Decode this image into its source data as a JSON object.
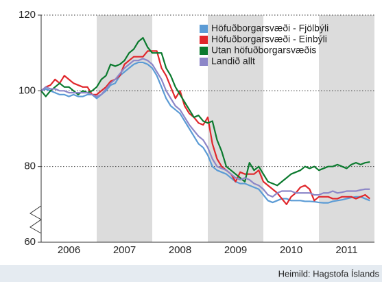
{
  "chart_data": {
    "type": "line",
    "source": "Heimild: Hagstofa Íslands",
    "xlim": [
      2006,
      2012
    ],
    "xticks": [
      {
        "value": 2006.5,
        "label": "2006"
      },
      {
        "value": 2007.5,
        "label": "2007"
      },
      {
        "value": 2008.5,
        "label": "2008"
      },
      {
        "value": 2009.5,
        "label": "2009"
      },
      {
        "value": 2010.5,
        "label": "2010"
      },
      {
        "value": 2011.5,
        "label": "2011"
      }
    ],
    "ylim": [
      60,
      120
    ],
    "yticks": [
      60,
      80,
      100,
      120
    ],
    "grid": true,
    "shaded_bands": [
      [
        2007,
        2008
      ],
      [
        2009,
        2010
      ],
      [
        2011,
        2012
      ]
    ],
    "legend": "top-right",
    "x": [
      2006.0,
      2006.083,
      2006.167,
      2006.25,
      2006.333,
      2006.417,
      2006.5,
      2006.583,
      2006.667,
      2006.75,
      2006.833,
      2006.917,
      2007.0,
      2007.083,
      2007.167,
      2007.25,
      2007.333,
      2007.417,
      2007.5,
      2007.583,
      2007.667,
      2007.75,
      2007.833,
      2007.917,
      2008.0,
      2008.083,
      2008.167,
      2008.25,
      2008.333,
      2008.417,
      2008.5,
      2008.583,
      2008.667,
      2008.75,
      2008.833,
      2008.917,
      2009.0,
      2009.083,
      2009.167,
      2009.25,
      2009.333,
      2009.417,
      2009.5,
      2009.583,
      2009.667,
      2009.75,
      2009.833,
      2009.917,
      2010.0,
      2010.083,
      2010.167,
      2010.25,
      2010.333,
      2010.417,
      2010.5,
      2010.583,
      2010.667,
      2010.75,
      2010.833,
      2010.917,
      2011.0,
      2011.083,
      2011.167,
      2011.25,
      2011.333,
      2011.417,
      2011.5,
      2011.583,
      2011.667,
      2011.75,
      2011.833,
      2011.917
    ],
    "series": [
      {
        "name": "Höfuðborgarsvæði - Fjölbýli",
        "color": "#5b9bd5",
        "values": [
          100,
          100.5,
          100,
          99.5,
          99,
          99,
          98.5,
          99,
          98.5,
          98.5,
          99,
          99,
          98,
          99,
          100,
          101.5,
          102,
          104,
          105,
          106,
          107,
          107.5,
          107.5,
          107,
          106,
          104,
          101,
          98,
          96,
          95,
          94,
          92,
          90,
          88,
          86,
          85,
          83,
          80,
          79,
          78.5,
          78,
          77,
          76,
          75.5,
          75.5,
          75,
          74.5,
          74,
          72.5,
          71,
          70.5,
          71,
          71.5,
          71.5,
          71,
          71,
          71,
          70.8,
          70.8,
          70.7,
          70.5,
          70.4,
          70.4,
          70.8,
          71,
          71.2,
          71.5,
          71.8,
          72,
          72,
          71.5,
          71
        ]
      },
      {
        "name": "Höfuðborgarsvæði - Einbýli",
        "color": "#e0262b",
        "values": [
          100,
          101,
          101.5,
          103,
          102,
          104,
          103,
          102,
          101.5,
          101,
          101,
          99,
          99,
          100,
          101,
          102.5,
          103,
          104,
          107,
          108,
          109,
          109,
          109,
          110.5,
          110.5,
          110.5,
          106,
          104,
          101,
          98,
          100,
          96,
          94,
          93,
          91.5,
          91,
          93,
          86,
          82,
          80,
          79,
          78,
          76,
          78.5,
          78,
          78,
          78,
          79,
          76,
          75,
          74,
          73,
          71.5,
          70,
          72,
          73,
          74.5,
          75,
          74,
          71,
          72,
          72,
          72,
          71.5,
          71.5,
          72,
          72,
          72,
          71.5,
          72,
          72.5,
          71.5
        ]
      },
      {
        "name": "Utan höfuðborgarsvæðis",
        "color": "#0b7a2e",
        "values": [
          100,
          98.5,
          100,
          101,
          102,
          101,
          101,
          100,
          99,
          100,
          99.5,
          100,
          101,
          103,
          104,
          107,
          106.5,
          107,
          108,
          110,
          111,
          113,
          114,
          111.5,
          110,
          110,
          110,
          106,
          104,
          101,
          99,
          97,
          95,
          93,
          93.5,
          92,
          91.5,
          92,
          87,
          84,
          80,
          79,
          78,
          77,
          76,
          81,
          79,
          80,
          78,
          76,
          75.5,
          75,
          76,
          77,
          78,
          78.5,
          79,
          80,
          79.5,
          80,
          79,
          79.5,
          80,
          80,
          80.5,
          80,
          79.5,
          80.5,
          81,
          80.5,
          81,
          81.2
        ]
      },
      {
        "name": "Landið allt",
        "color": "#8c86c8",
        "values": [
          100,
          101,
          100.5,
          100.5,
          100,
          100,
          99.5,
          99.5,
          99.5,
          99.5,
          99.5,
          99,
          98.5,
          99,
          100.5,
          102,
          103,
          104.5,
          106,
          107,
          108,
          108,
          108.5,
          108,
          107,
          105,
          103,
          100,
          98,
          96,
          95,
          93,
          91,
          89.5,
          88,
          87,
          85,
          82,
          80,
          79.5,
          79,
          78,
          77,
          76.5,
          77,
          76.5,
          75.5,
          75,
          74,
          72.5,
          72,
          73,
          73.5,
          73.5,
          73.5,
          73,
          73,
          73,
          73,
          72.5,
          72.5,
          73,
          73,
          73.5,
          73,
          73.2,
          73.5,
          73.5,
          73.5,
          73.8,
          74,
          74
        ]
      }
    ]
  }
}
